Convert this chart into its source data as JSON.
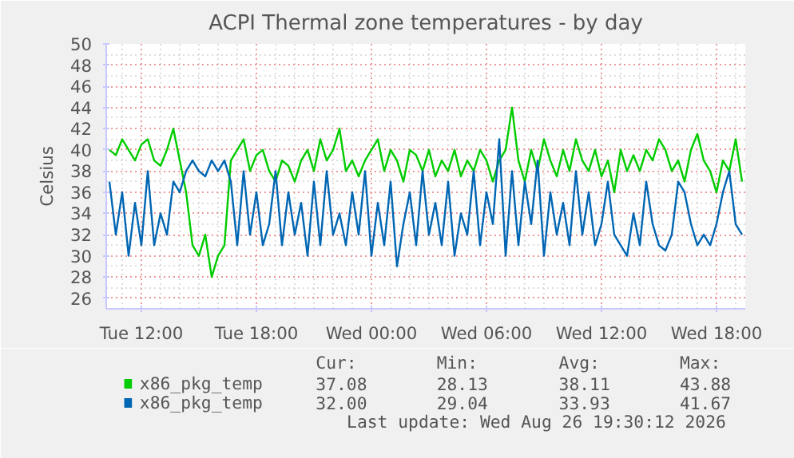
{
  "chart_data": {
    "type": "line",
    "title": "ACPI Thermal zone temperatures - by day",
    "ylabel": "Celsius",
    "x": [
      "2026-08-25T10:20",
      "2026-08-25T10:40",
      "2026-08-25T11:00",
      "2026-08-25T11:20",
      "2026-08-25T11:40",
      "2026-08-25T12:00",
      "2026-08-25T12:20",
      "2026-08-25T12:40",
      "2026-08-25T13:00",
      "2026-08-25T13:20",
      "2026-08-25T13:40",
      "2026-08-25T14:00",
      "2026-08-25T14:20",
      "2026-08-25T14:40",
      "2026-08-25T15:00",
      "2026-08-25T15:20",
      "2026-08-25T15:40",
      "2026-08-25T16:00",
      "2026-08-25T16:20",
      "2026-08-25T16:40",
      "2026-08-25T17:00",
      "2026-08-25T17:20",
      "2026-08-25T17:40",
      "2026-08-25T18:00",
      "2026-08-25T18:20",
      "2026-08-25T18:40",
      "2026-08-25T19:00",
      "2026-08-25T19:20",
      "2026-08-25T19:40",
      "2026-08-25T20:00",
      "2026-08-25T20:20",
      "2026-08-25T20:40",
      "2026-08-25T21:00",
      "2026-08-25T21:20",
      "2026-08-25T21:40",
      "2026-08-25T22:00",
      "2026-08-25T22:20",
      "2026-08-25T22:40",
      "2026-08-25T23:00",
      "2026-08-25T23:20",
      "2026-08-25T23:40",
      "2026-08-26T00:00",
      "2026-08-26T00:20",
      "2026-08-26T00:40",
      "2026-08-26T01:00",
      "2026-08-26T01:20",
      "2026-08-26T01:40",
      "2026-08-26T02:00",
      "2026-08-26T02:20",
      "2026-08-26T02:40",
      "2026-08-26T03:00",
      "2026-08-26T03:20",
      "2026-08-26T03:40",
      "2026-08-26T04:00",
      "2026-08-26T04:20",
      "2026-08-26T04:40",
      "2026-08-26T05:00",
      "2026-08-26T05:20",
      "2026-08-26T05:40",
      "2026-08-26T06:00",
      "2026-08-26T06:20",
      "2026-08-26T06:40",
      "2026-08-26T07:00",
      "2026-08-26T07:20",
      "2026-08-26T07:40",
      "2026-08-26T08:00",
      "2026-08-26T08:20",
      "2026-08-26T08:40",
      "2026-08-26T09:00",
      "2026-08-26T09:20",
      "2026-08-26T09:40",
      "2026-08-26T10:00",
      "2026-08-26T10:20",
      "2026-08-26T10:40",
      "2026-08-26T11:00",
      "2026-08-26T11:20",
      "2026-08-26T11:40",
      "2026-08-26T12:00",
      "2026-08-26T12:20",
      "2026-08-26T12:40",
      "2026-08-26T13:00",
      "2026-08-26T13:20",
      "2026-08-26T13:40",
      "2026-08-26T14:00",
      "2026-08-26T14:20",
      "2026-08-26T14:40",
      "2026-08-26T15:00",
      "2026-08-26T15:20",
      "2026-08-26T15:40",
      "2026-08-26T16:00",
      "2026-08-26T16:20",
      "2026-08-26T16:40",
      "2026-08-26T17:00",
      "2026-08-26T17:20",
      "2026-08-26T17:40",
      "2026-08-26T18:00",
      "2026-08-26T18:20",
      "2026-08-26T18:40",
      "2026-08-26T19:00",
      "2026-08-26T19:20"
    ],
    "series": [
      {
        "name": "x86_pkg_temp",
        "color": "#00cc00",
        "values": [
          40,
          39.5,
          41,
          40,
          39,
          40.5,
          41,
          39,
          38.5,
          40,
          42,
          39,
          36,
          31,
          30,
          32,
          28,
          30,
          31,
          39,
          40,
          41,
          38,
          39.5,
          40,
          38,
          37,
          39,
          38.5,
          37,
          39,
          40,
          38,
          41,
          39,
          40,
          42,
          38,
          39,
          37.5,
          39,
          40,
          41,
          38,
          40,
          39,
          37,
          40,
          39.5,
          38,
          40,
          37.5,
          39,
          38,
          40,
          37.5,
          39,
          38,
          40,
          39,
          37,
          39,
          40,
          44,
          39,
          37,
          40,
          38,
          41,
          39,
          37.5,
          40,
          38,
          41,
          39,
          38,
          40,
          37.5,
          39,
          36,
          40,
          38,
          39.5,
          38,
          40,
          39,
          41,
          40,
          38,
          39,
          37,
          40,
          41.5,
          39,
          38,
          36,
          39,
          38,
          41,
          37
        ]
      },
      {
        "name": "x86_pkg_temp",
        "color": "#0066b3",
        "values": [
          37,
          32,
          36,
          30,
          35,
          31,
          38,
          31,
          34,
          32,
          37,
          36,
          38,
          39,
          38,
          37.5,
          39,
          38,
          39,
          37,
          31,
          38,
          32,
          36,
          31,
          33,
          38,
          31,
          36,
          32,
          35,
          30,
          37,
          31,
          38,
          32,
          34,
          31,
          36,
          32,
          38,
          30,
          35,
          31,
          37,
          29,
          33,
          36,
          31,
          38,
          32,
          35,
          31,
          37,
          30,
          34,
          32,
          38,
          31,
          36,
          33,
          41,
          30,
          38,
          31,
          37,
          33,
          39,
          30,
          36,
          32,
          35,
          31,
          38,
          32,
          36,
          31,
          33,
          37,
          32,
          31,
          30,
          34,
          31,
          37,
          33,
          31,
          30.5,
          32,
          37,
          36,
          33,
          31,
          32,
          31,
          33,
          36,
          38,
          33,
          32
        ]
      }
    ],
    "xlim": [
      "2026-08-25T10:10",
      "2026-08-26T19:30"
    ],
    "xticks": [
      {
        "value": "2026-08-25T12:00",
        "label": "Tue 12:00"
      },
      {
        "value": "2026-08-25T18:00",
        "label": "Tue 18:00"
      },
      {
        "value": "2026-08-26T00:00",
        "label": "Wed 00:00"
      },
      {
        "value": "2026-08-26T06:00",
        "label": "Wed 06:00"
      },
      {
        "value": "2026-08-26T12:00",
        "label": "Wed 12:00"
      },
      {
        "value": "2026-08-26T18:00",
        "label": "Wed 18:00"
      }
    ],
    "ylim": [
      25,
      50
    ],
    "yticks": [
      26,
      28,
      30,
      32,
      34,
      36,
      38,
      40,
      42,
      44,
      46,
      48,
      50
    ],
    "grid": true,
    "legend": "bottom",
    "marker": "none",
    "line_style": "solid",
    "annotations": [
      "Cur:",
      "Min:",
      "Avg:",
      "Max:",
      "37.08",
      "28.13",
      "38.11",
      "43.88",
      "32.00",
      "29.04",
      "33.93",
      "41.67",
      "Last update: Wed Aug 26 19:30:12 2026"
    ]
  }
}
